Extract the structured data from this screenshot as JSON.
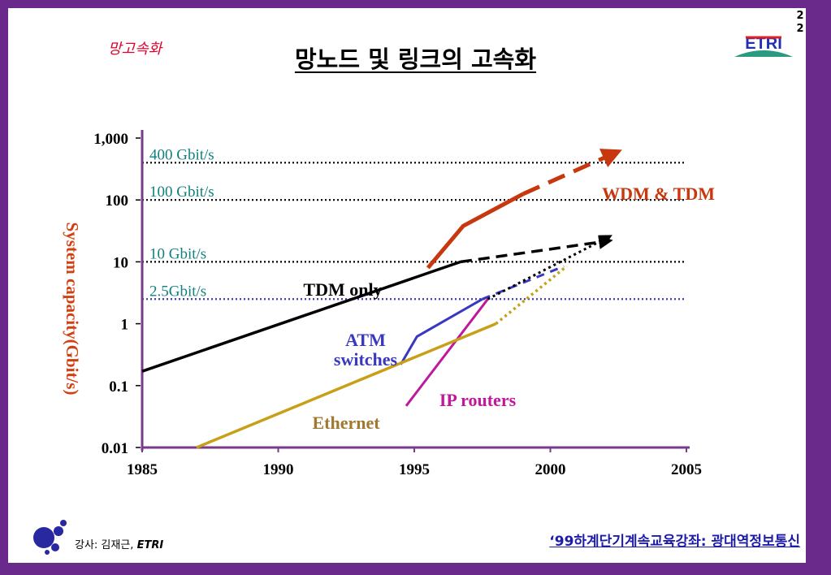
{
  "slide": {
    "number_line1": "2",
    "number_line2": "2",
    "section_tag": "망고속화",
    "title": "망노드 및 링크의 고속화",
    "logo_text": "ETRI"
  },
  "footer": {
    "lecturer_prefix": "강사: 김재근, ",
    "lecturer_org": "ETRI",
    "course": "‘99하계단기계속교육강좌: 광대역정보통신"
  },
  "colors": {
    "frame": "#6a2a8c",
    "wdm": "#c8380e",
    "tdm": "#000000",
    "atm": "#3838c0",
    "ip": "#c0189a",
    "ethernet": "#c8a018",
    "ref_teal": "#108080",
    "axis": "#7a3a8c",
    "ylabel": "#d04010"
  },
  "chart_data": {
    "type": "line",
    "title": "",
    "xlabel": "",
    "ylabel": "System capacity(Gbit/s)",
    "xlim": [
      1985,
      2005
    ],
    "ylim": [
      0.01,
      1000
    ],
    "yscale": "log",
    "x_ticks": [
      "1985",
      "1990",
      "1995",
      "2000",
      "2005"
    ],
    "y_ticks": [
      {
        "value": 1000,
        "label": "1,000"
      },
      {
        "value": 100,
        "label": "100"
      },
      {
        "value": 10,
        "label": "10"
      },
      {
        "value": 1,
        "label": "1"
      },
      {
        "value": 0.1,
        "label": "0.1"
      },
      {
        "value": 0.01,
        "label": "0.01"
      }
    ],
    "reference_lines": [
      {
        "label": "400 Gbit/s",
        "value": 400
      },
      {
        "label": "100 Gbit/s",
        "value": 100
      },
      {
        "label": "10 Gbit/s",
        "value": 10
      },
      {
        "label": "2.5Gbit/s",
        "value": 2.5
      }
    ],
    "series": [
      {
        "name": "WDM & TDM",
        "points": [
          [
            1995.5,
            8
          ],
          [
            1996.8,
            38
          ],
          [
            1999.0,
            125
          ]
        ],
        "projection": [
          [
            1999.0,
            125
          ],
          [
            2002.5,
            610
          ]
        ]
      },
      {
        "name": "TDM only",
        "points": [
          [
            1985,
            0.17
          ],
          [
            1996.7,
            10
          ]
        ],
        "projection": [
          [
            1996.7,
            10
          ],
          [
            2002.2,
            22
          ]
        ]
      },
      {
        "name": "ATM switches",
        "points": [
          [
            1994.5,
            0.22
          ],
          [
            1995.1,
            0.62
          ],
          [
            1997.5,
            2.5
          ]
        ],
        "projection": [
          [
            1997.5,
            2.5
          ],
          [
            2000.5,
            8.5
          ]
        ]
      },
      {
        "name": "IP routers",
        "points": [
          [
            1994.7,
            0.047
          ],
          [
            1997.7,
            2.5
          ]
        ],
        "projection": [
          [
            1997.7,
            2.5
          ],
          [
            2002.2,
            26
          ]
        ]
      },
      {
        "name": "Ethernet",
        "points": [
          [
            1987,
            0.01
          ],
          [
            1998,
            1.0
          ]
        ],
        "projection": [
          [
            1998,
            1.0
          ],
          [
            2000.6,
            8.5
          ]
        ]
      }
    ]
  }
}
